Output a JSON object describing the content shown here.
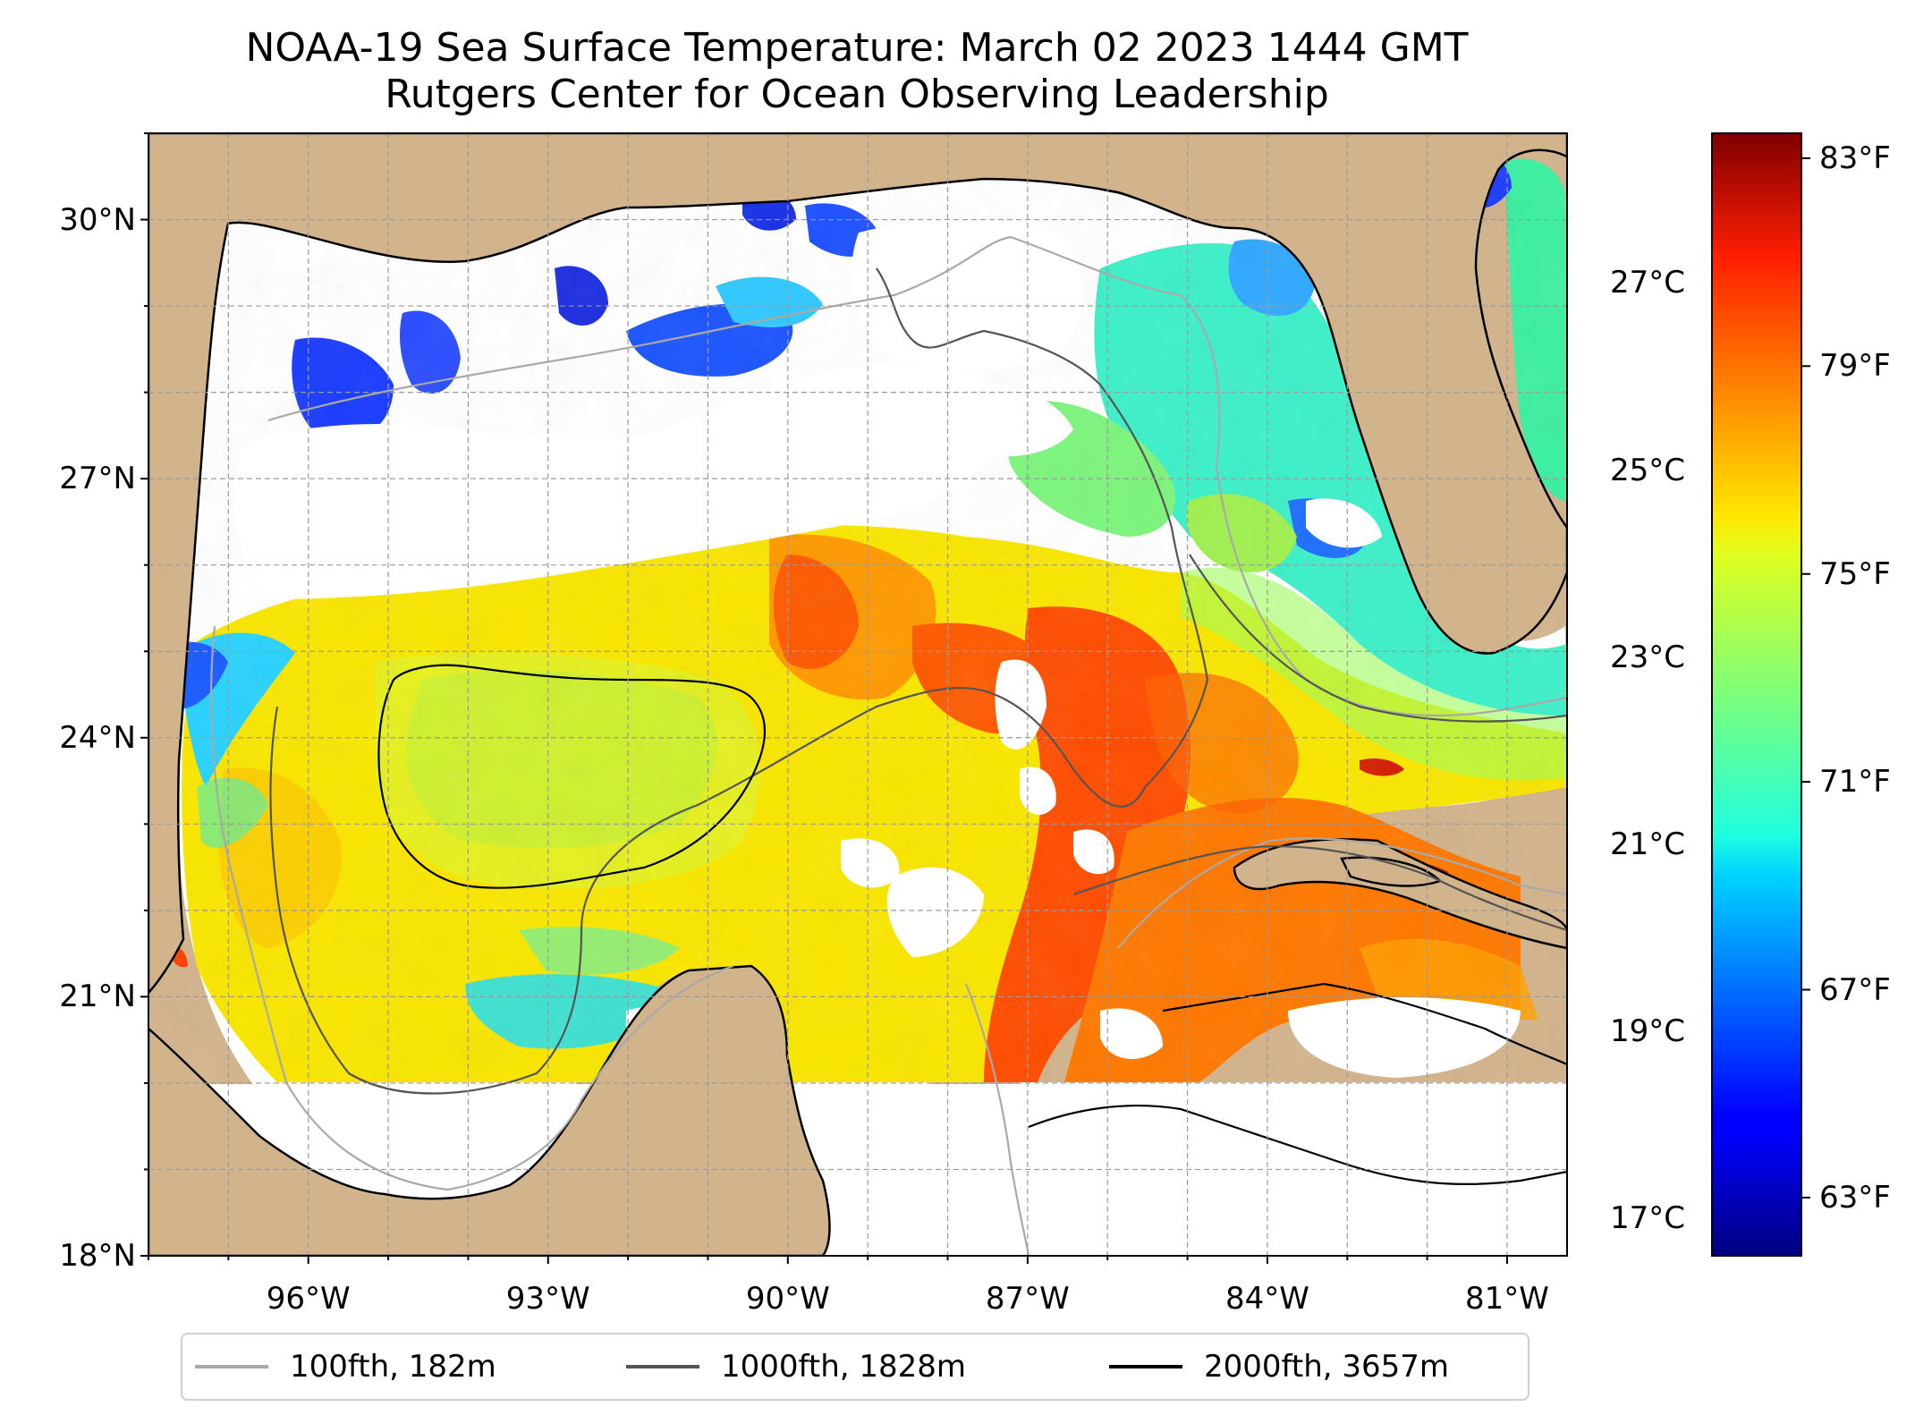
{
  "title": {
    "line1": "NOAA-19 Sea Surface Temperature: March 02 2023 1444 GMT",
    "line2": "Rutgers Center for Ocean Observing Leadership"
  },
  "map": {
    "lon_range": [
      -98.0,
      -80.25
    ],
    "lat_range": [
      18.0,
      31.0
    ],
    "gridlines": "dashed",
    "land_color": "#d2b48c",
    "lat_ticks": [
      {
        "lat": 30,
        "label": "30°N"
      },
      {
        "lat": 27,
        "label": "27°N"
      },
      {
        "lat": 24,
        "label": "24°N"
      },
      {
        "lat": 21,
        "label": "21°N"
      },
      {
        "lat": 18,
        "label": "18°N"
      }
    ],
    "lon_ticks": [
      {
        "lon": -96,
        "label": "96°W"
      },
      {
        "lon": -93,
        "label": "93°W"
      },
      {
        "lon": -90,
        "label": "90°W"
      },
      {
        "lon": -87,
        "label": "87°W"
      },
      {
        "lon": -84,
        "label": "84°W"
      },
      {
        "lon": -81,
        "label": "81°W"
      }
    ]
  },
  "colorbar": {
    "colormap": "jet",
    "celsius_range": [
      16.6,
      28.6
    ],
    "celsius_ticks": [
      {
        "value": 27,
        "label": "27°C"
      },
      {
        "value": 25,
        "label": "25°C"
      },
      {
        "value": 23,
        "label": "23°C"
      },
      {
        "value": 21,
        "label": "21°C"
      },
      {
        "value": 19,
        "label": "19°C"
      },
      {
        "value": 17,
        "label": "17°C"
      }
    ],
    "fahrenheit_ticks": [
      {
        "value": 83,
        "label": "83°F"
      },
      {
        "value": 79,
        "label": "79°F"
      },
      {
        "value": 75,
        "label": "75°F"
      },
      {
        "value": 71,
        "label": "71°F"
      },
      {
        "value": 67,
        "label": "67°F"
      },
      {
        "value": 63,
        "label": "63°F"
      }
    ]
  },
  "legend": {
    "placement": "bottom-center",
    "items": [
      {
        "label": "100fth, 182m",
        "color": "#a9a9a9"
      },
      {
        "label": "1000fth, 1828m",
        "color": "#555555"
      },
      {
        "label": "2000fth, 3657m",
        "color": "#000000"
      }
    ]
  }
}
